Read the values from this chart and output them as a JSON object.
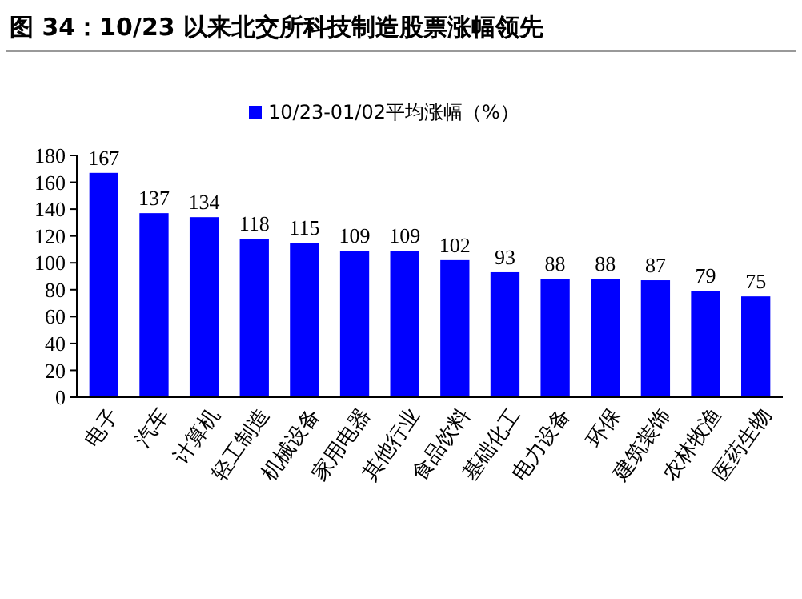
{
  "chart_data": {
    "type": "bar",
    "title": "图 34：10/23 以来北交所科技制造股票涨幅领先",
    "categories": [
      "电子",
      "汽车",
      "计算机",
      "轻工制造",
      "机械设备",
      "家用电器",
      "其他行业",
      "食品饮料",
      "基础化工",
      "电力设备",
      "环保",
      "建筑装饰",
      "农林牧渔",
      "医药生物"
    ],
    "series": [
      {
        "name": "10/23-01/02平均涨幅（%）",
        "color": "#0000ff",
        "values": [
          167,
          137,
          134,
          118,
          115,
          109,
          109,
          102,
          93,
          88,
          88,
          87,
          79,
          75
        ]
      }
    ],
    "ylim": [
      0,
      180
    ],
    "yticks": [
      0,
      20,
      40,
      60,
      80,
      100,
      120,
      140,
      160,
      180
    ],
    "data_labels": true,
    "legend": "top",
    "grid": false
  }
}
